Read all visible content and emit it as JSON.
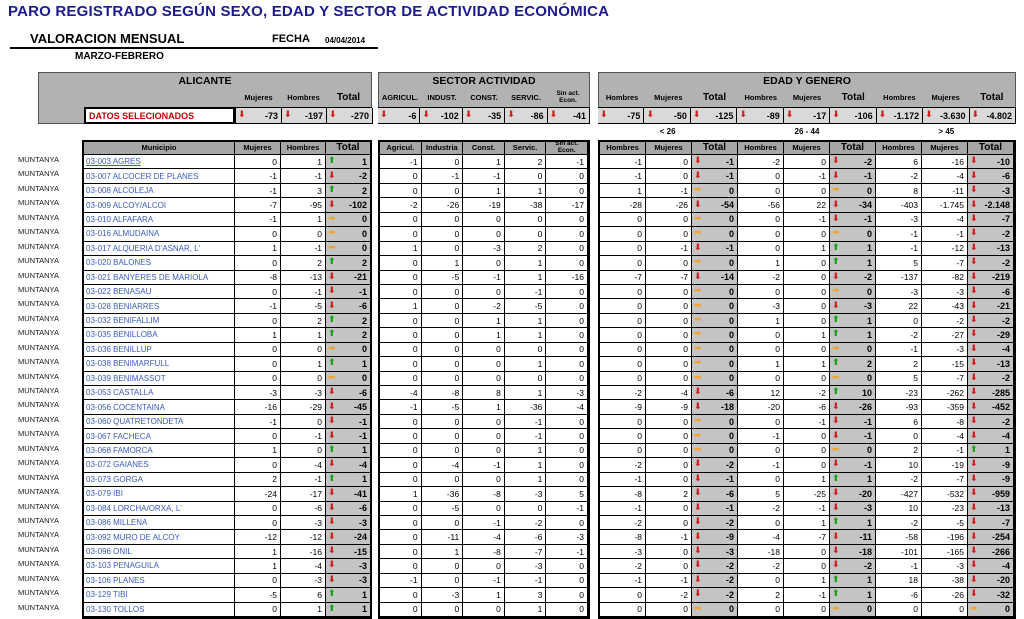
{
  "header": {
    "title": "PARO REGISTRADO SEGÚN SEXO, EDAD Y SECTOR DE ACTIVIDAD ECONÓMICA",
    "subtitle": "VALORACION MENSUAL",
    "fecha_label": "FECHA",
    "fecha_value": "04/04/2014",
    "period": "MARZO-FEBRERO"
  },
  "datos_label": "DATOS SELECIONADOS",
  "colors": {
    "title": "#1b1b8f",
    "link": "#3b5bc0",
    "band": "#b2b2b2",
    "header_cell": "#a6a6a6",
    "totals_cell": "#d9d9d9",
    "total_col": "#c4c4c4",
    "datos_text": "#c00000",
    "up": "#18a018",
    "down": "#d02020",
    "right": "#f0a432"
  },
  "sections": {
    "alicante": {
      "title": "ALICANTE",
      "cols": [
        "Mujeres",
        "Hombres",
        "Total"
      ],
      "totals": [
        {
          "v": "-73",
          "dir": "d"
        },
        {
          "v": "-197",
          "dir": "d"
        },
        {
          "v": "-270",
          "dir": "d"
        }
      ]
    },
    "sector": {
      "title": "SECTOR ACTIVIDAD",
      "cols": [
        "AGRICUL.",
        "INDUST.",
        "CONST.",
        "SERVIC.",
        "Sin act. Econ."
      ],
      "totals": [
        {
          "v": "-6",
          "dir": "d"
        },
        {
          "v": "-102",
          "dir": "d"
        },
        {
          "v": "-35",
          "dir": "d"
        },
        {
          "v": "-86",
          "dir": "d"
        },
        {
          "v": "-41",
          "dir": "d"
        }
      ]
    },
    "edad": {
      "title": "EDAD Y GENERO",
      "cols": [
        "Hombres",
        "Mujeres",
        "Total",
        "Hombres",
        "Mujeres",
        "Total",
        "Hombres",
        "Mujeres",
        "Total"
      ],
      "totals": [
        {
          "v": "-75",
          "dir": "d"
        },
        {
          "v": "-50",
          "dir": "d"
        },
        {
          "v": "-125",
          "dir": "d"
        },
        {
          "v": "-89",
          "dir": "d"
        },
        {
          "v": "-17",
          "dir": "d"
        },
        {
          "v": "-106",
          "dir": "d"
        },
        {
          "v": "-1.172",
          "dir": "d"
        },
        {
          "v": "-3.630",
          "dir": "d"
        },
        {
          "v": "-4.802",
          "dir": "d"
        }
      ],
      "age_groups": [
        "< 26",
        "26 - 44",
        "> 45"
      ]
    }
  },
  "table": {
    "zone_label": "MUNTANYA",
    "headers": {
      "municipio": "Municipio",
      "alicante": [
        "Mujeres",
        "Hombres",
        "Total"
      ],
      "sector": [
        "Agricul.",
        "Industria",
        "Const.",
        "Servic.",
        "Sin act. Econ."
      ],
      "edad": [
        "Hombres",
        "Mujeres",
        "Total",
        "Hombres",
        "Mujeres",
        "Total",
        "Hombres",
        "Mujeres",
        "Total"
      ]
    },
    "rows": [
      {
        "muni": "03-003 AGRES",
        "ul": true,
        "ali": [
          "0",
          "1",
          "1",
          "u"
        ],
        "sec": [
          "-1",
          "0",
          "1",
          "2",
          "-1"
        ],
        "edad": [
          "-1",
          "0",
          "-1",
          "d",
          "-2",
          "0",
          "-2",
          "d",
          "6",
          "-16",
          "-10",
          "d"
        ]
      },
      {
        "muni": "03-007 ALCOCER DE PLANES",
        "ali": [
          "-1",
          "-1",
          "-2",
          "d"
        ],
        "sec": [
          "0",
          "-1",
          "-1",
          "0",
          "0"
        ],
        "edad": [
          "-1",
          "0",
          "-1",
          "d",
          "0",
          "-1",
          "-1",
          "d",
          "-2",
          "-4",
          "-6",
          "d"
        ]
      },
      {
        "muni": "03-008 ALCOLEJA",
        "ali": [
          "-1",
          "3",
          "2",
          "u"
        ],
        "sec": [
          "0",
          "0",
          "1",
          "1",
          "0"
        ],
        "edad": [
          "1",
          "-1",
          "0",
          "r",
          "0",
          "0",
          "0",
          "r",
          "8",
          "-11",
          "-3",
          "d"
        ]
      },
      {
        "muni": "03-009 ALCOY/ALCOI",
        "ali": [
          "-7",
          "-95",
          "-102",
          "d"
        ],
        "sec": [
          "-2",
          "-26",
          "-19",
          "-38",
          "-17"
        ],
        "edad": [
          "-28",
          "-26",
          "-54",
          "d",
          "-56",
          "22",
          "-34",
          "d",
          "-403",
          "-1.745",
          "-2.148",
          "d"
        ]
      },
      {
        "muni": "03-010 ALFAFARA",
        "ali": [
          "-1",
          "1",
          "0",
          "r"
        ],
        "sec": [
          "0",
          "0",
          "0",
          "0",
          "0"
        ],
        "edad": [
          "0",
          "0",
          "0",
          "r",
          "0",
          "-1",
          "-1",
          "d",
          "-3",
          "-4",
          "-7",
          "d"
        ]
      },
      {
        "muni": "03-016 ALMUDAINA",
        "ali": [
          "0",
          "0",
          "0",
          "r"
        ],
        "sec": [
          "0",
          "0",
          "0",
          "0",
          "0"
        ],
        "edad": [
          "0",
          "0",
          "0",
          "r",
          "0",
          "0",
          "0",
          "r",
          "-1",
          "-1",
          "-2",
          "d"
        ]
      },
      {
        "muni": "03-017 ALQUERIA D'ASNAR, L'",
        "ali": [
          "1",
          "-1",
          "0",
          "r"
        ],
        "sec": [
          "1",
          "0",
          "-3",
          "2",
          "0"
        ],
        "edad": [
          "0",
          "-1",
          "-1",
          "d",
          "0",
          "1",
          "1",
          "u",
          "-1",
          "-12",
          "-13",
          "d"
        ]
      },
      {
        "muni": "03-020 BALONES",
        "ali": [
          "0",
          "2",
          "2",
          "u"
        ],
        "sec": [
          "0",
          "1",
          "0",
          "1",
          "0"
        ],
        "edad": [
          "0",
          "0",
          "0",
          "r",
          "1",
          "0",
          "1",
          "u",
          "5",
          "-7",
          "-2",
          "d"
        ]
      },
      {
        "muni": "03-021 BANYERES DE MARIOLA",
        "ali": [
          "-8",
          "-13",
          "-21",
          "d"
        ],
        "sec": [
          "0",
          "-5",
          "-1",
          "1",
          "-16"
        ],
        "edad": [
          "-7",
          "-7",
          "-14",
          "d",
          "-2",
          "0",
          "-2",
          "d",
          "-137",
          "-82",
          "-219",
          "d"
        ]
      },
      {
        "muni": "03-022 BENASAU",
        "ali": [
          "0",
          "-1",
          "-1",
          "d"
        ],
        "sec": [
          "0",
          "0",
          "0",
          "-1",
          "0"
        ],
        "edad": [
          "0",
          "0",
          "0",
          "r",
          "0",
          "0",
          "0",
          "r",
          "-3",
          "-3",
          "-6",
          "d"
        ]
      },
      {
        "muni": "03-028 BENIARRES",
        "ali": [
          "-1",
          "-5",
          "-6",
          "d"
        ],
        "sec": [
          "1",
          "0",
          "-2",
          "-5",
          "0"
        ],
        "edad": [
          "0",
          "0",
          "0",
          "r",
          "-3",
          "0",
          "-3",
          "d",
          "22",
          "-43",
          "-21",
          "d"
        ]
      },
      {
        "muni": "03-032 BENIFALLIM",
        "ali": [
          "0",
          "2",
          "2",
          "u"
        ],
        "sec": [
          "0",
          "0",
          "1",
          "1",
          "0"
        ],
        "edad": [
          "0",
          "0",
          "0",
          "r",
          "1",
          "0",
          "1",
          "u",
          "0",
          "-2",
          "-2",
          "d"
        ]
      },
      {
        "muni": "03-035 BENILLOBA",
        "ali": [
          "1",
          "1",
          "2",
          "u"
        ],
        "sec": [
          "0",
          "0",
          "1",
          "1",
          "0"
        ],
        "edad": [
          "0",
          "0",
          "0",
          "r",
          "0",
          "1",
          "1",
          "u",
          "-2",
          "-27",
          "-29",
          "d"
        ]
      },
      {
        "muni": "03-036 BENILLUP",
        "ali": [
          "0",
          "0",
          "0",
          "r"
        ],
        "sec": [
          "0",
          "0",
          "0",
          "0",
          "0"
        ],
        "edad": [
          "0",
          "0",
          "0",
          "r",
          "0",
          "0",
          "0",
          "r",
          "-1",
          "-3",
          "-4",
          "d"
        ]
      },
      {
        "muni": "03-038 BENIMARFULL",
        "ali": [
          "0",
          "1",
          "1",
          "u"
        ],
        "sec": [
          "0",
          "0",
          "0",
          "1",
          "0"
        ],
        "edad": [
          "0",
          "0",
          "0",
          "r",
          "1",
          "1",
          "2",
          "u",
          "2",
          "-15",
          "-13",
          "d"
        ]
      },
      {
        "muni": "03-039 BENIMASSOT",
        "ali": [
          "0",
          "0",
          "0",
          "r"
        ],
        "sec": [
          "0",
          "0",
          "0",
          "0",
          "0"
        ],
        "edad": [
          "0",
          "0",
          "0",
          "r",
          "0",
          "0",
          "0",
          "r",
          "5",
          "-7",
          "-2",
          "d"
        ]
      },
      {
        "muni": "03-053 CASTALLA",
        "ali": [
          "-3",
          "-3",
          "-6",
          "d"
        ],
        "sec": [
          "-4",
          "-8",
          "8",
          "1",
          "-3"
        ],
        "edad": [
          "-2",
          "-4",
          "-6",
          "d",
          "12",
          "-2",
          "10",
          "u",
          "-23",
          "-262",
          "-285",
          "d"
        ]
      },
      {
        "muni": "03-056 COCENTAINA",
        "ali": [
          "-16",
          "-29",
          "-45",
          "d"
        ],
        "sec": [
          "-1",
          "-5",
          "1",
          "-36",
          "-4"
        ],
        "edad": [
          "-9",
          "-9",
          "-18",
          "d",
          "-20",
          "-6",
          "-26",
          "d",
          "-93",
          "-359",
          "-452",
          "d"
        ]
      },
      {
        "muni": "03-060 QUATRETONDETA",
        "ali": [
          "-1",
          "0",
          "-1",
          "d"
        ],
        "sec": [
          "0",
          "0",
          "0",
          "-1",
          "0"
        ],
        "edad": [
          "0",
          "0",
          "0",
          "r",
          "0",
          "-1",
          "-1",
          "d",
          "6",
          "-8",
          "-2",
          "d"
        ]
      },
      {
        "muni": "03-067 FACHECA",
        "ali": [
          "0",
          "-1",
          "-1",
          "d"
        ],
        "sec": [
          "0",
          "0",
          "0",
          "-1",
          "0"
        ],
        "edad": [
          "0",
          "0",
          "0",
          "r",
          "-1",
          "0",
          "-1",
          "d",
          "0",
          "-4",
          "-4",
          "d"
        ]
      },
      {
        "muni": "03-068 FAMORCA",
        "ali": [
          "1",
          "0",
          "1",
          "u"
        ],
        "sec": [
          "0",
          "0",
          "0",
          "1",
          "0"
        ],
        "edad": [
          "0",
          "0",
          "0",
          "r",
          "0",
          "0",
          "0",
          "r",
          "2",
          "-1",
          "1",
          "u"
        ]
      },
      {
        "muni": "03-072 GAIANES",
        "ali": [
          "0",
          "-4",
          "-4",
          "d"
        ],
        "sec": [
          "0",
          "-4",
          "-1",
          "1",
          "0"
        ],
        "edad": [
          "-2",
          "0",
          "-2",
          "d",
          "-1",
          "0",
          "-1",
          "d",
          "10",
          "-19",
          "-9",
          "d"
        ]
      },
      {
        "muni": "03-073 GORGA",
        "ali": [
          "2",
          "-1",
          "1",
          "u"
        ],
        "sec": [
          "0",
          "0",
          "0",
          "1",
          "0"
        ],
        "edad": [
          "-1",
          "0",
          "-1",
          "d",
          "0",
          "1",
          "1",
          "u",
          "-2",
          "-7",
          "-9",
          "d"
        ]
      },
      {
        "muni": "03-079 IBI",
        "ali": [
          "-24",
          "-17",
          "-41",
          "d"
        ],
        "sec": [
          "1",
          "-36",
          "-8",
          "-3",
          "5"
        ],
        "edad": [
          "-8",
          "2",
          "-6",
          "d",
          "5",
          "-25",
          "-20",
          "d",
          "-427",
          "-532",
          "-959",
          "d"
        ]
      },
      {
        "muni": "03-084 LORCHA/ORXA, L'",
        "ali": [
          "0",
          "-6",
          "-6",
          "d"
        ],
        "sec": [
          "0",
          "-5",
          "0",
          "0",
          "-1"
        ],
        "edad": [
          "-1",
          "0",
          "-1",
          "d",
          "-2",
          "-1",
          "-3",
          "d",
          "10",
          "-23",
          "-13",
          "d"
        ]
      },
      {
        "muni": "03-086 MILLENA",
        "ali": [
          "0",
          "-3",
          "-3",
          "d"
        ],
        "sec": [
          "0",
          "0",
          "-1",
          "-2",
          "0"
        ],
        "edad": [
          "-2",
          "0",
          "-2",
          "d",
          "0",
          "1",
          "1",
          "u",
          "-2",
          "-5",
          "-7",
          "d"
        ]
      },
      {
        "muni": "03-092 MURO DE ALCOY",
        "ali": [
          "-12",
          "-12",
          "-24",
          "d"
        ],
        "sec": [
          "0",
          "-11",
          "-4",
          "-6",
          "-3"
        ],
        "edad": [
          "-8",
          "-1",
          "-9",
          "d",
          "-4",
          "-7",
          "-11",
          "d",
          "-58",
          "-196",
          "-254",
          "d"
        ]
      },
      {
        "muni": "03-096 ONIL",
        "ali": [
          "1",
          "-16",
          "-15",
          "d"
        ],
        "sec": [
          "0",
          "1",
          "-8",
          "-7",
          "-1"
        ],
        "edad": [
          "-3",
          "0",
          "-3",
          "d",
          "-18",
          "0",
          "-18",
          "d",
          "-101",
          "-165",
          "-266",
          "d"
        ]
      },
      {
        "muni": "03-103 PENAGUILA",
        "ali": [
          "1",
          "-4",
          "-3",
          "d"
        ],
        "sec": [
          "0",
          "0",
          "0",
          "-3",
          "0"
        ],
        "edad": [
          "-2",
          "0",
          "-2",
          "d",
          "-2",
          "0",
          "-2",
          "d",
          "-1",
          "-3",
          "-4",
          "d"
        ]
      },
      {
        "muni": "03-106 PLANES",
        "ali": [
          "0",
          "-3",
          "-3",
          "d"
        ],
        "sec": [
          "-1",
          "0",
          "-1",
          "-1",
          "0"
        ],
        "edad": [
          "-1",
          "-1",
          "-2",
          "d",
          "0",
          "1",
          "1",
          "u",
          "18",
          "-38",
          "-20",
          "d"
        ]
      },
      {
        "muni": "03-129 TIBI",
        "ali": [
          "-5",
          "6",
          "1",
          "u"
        ],
        "sec": [
          "0",
          "-3",
          "1",
          "3",
          "0"
        ],
        "edad": [
          "0",
          "-2",
          "-2",
          "d",
          "2",
          "-1",
          "1",
          "u",
          "-6",
          "-26",
          "-32",
          "d"
        ]
      },
      {
        "muni": "03-130 TOLLOS",
        "ali": [
          "0",
          "1",
          "1",
          "u"
        ],
        "sec": [
          "0",
          "0",
          "0",
          "1",
          "0"
        ],
        "edad": [
          "0",
          "0",
          "0",
          "r",
          "0",
          "0",
          "0",
          "r",
          "0",
          "0",
          "0",
          "r"
        ]
      }
    ]
  }
}
